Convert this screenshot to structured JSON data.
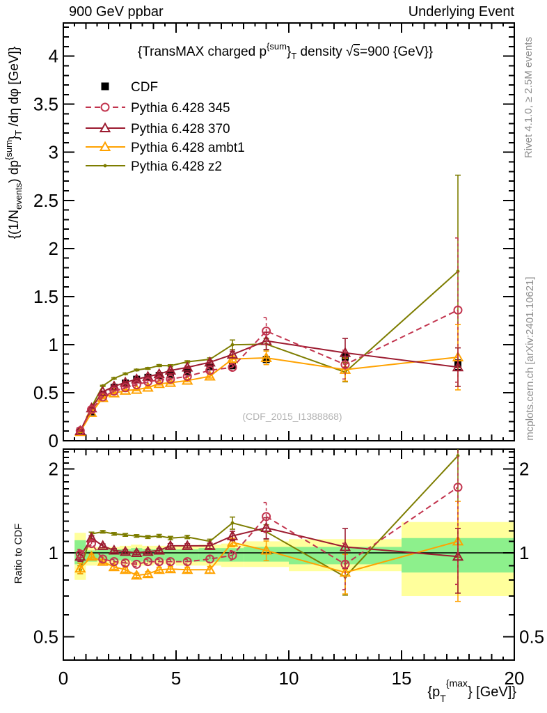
{
  "header": {
    "left": "900 GeV ppbar",
    "right": "Underlying Event"
  },
  "side_captions": {
    "top_right": "Rivet 4.1.0, ≥ 2.5M events",
    "bottom_right": "mcplots.cern.ch [arXiv:2401.10621]"
  },
  "watermark": "(CDF_2015_I1388868)",
  "chart_data": {
    "type": "line",
    "title": "{TransMAX charged p{sum}T density √s=900 {GeV}}",
    "title_parts": {
      "pre": "{TransMAX charged p",
      "sup": "{sum",
      "brace": "}",
      "sub": "T",
      "mid": " density ",
      "sqrt": "√",
      "sqrt_arg": "s",
      "post": "=900 {GeV}}"
    },
    "xlabel_parts": {
      "pre": "{p",
      "sub": "T",
      "sup": "{max",
      "post": "} [GeV]}"
    },
    "ylabel_top_parts": {
      "p1": "{(1/N",
      "s1": "events",
      "p2": ") dp",
      "s2": "{sum",
      "p3": "}",
      "s3": "T",
      "p4": " /dη dφ [GeV]}"
    },
    "ylabel_bottom": "Ratio to CDF",
    "xlim": [
      0,
      20
    ],
    "ylim_top": [
      0,
      4.345
    ],
    "ylim_ratio": [
      0.412,
      2.357
    ],
    "ratio_scale": "log",
    "x_ticks_labeled": [
      0,
      5,
      10,
      15,
      20
    ],
    "y_ticks_top": [
      0,
      0.5,
      1,
      1.5,
      2,
      2.5,
      3,
      3.5,
      4
    ],
    "y_ticks_ratio": [
      0.5,
      1,
      2
    ],
    "bin_edges": [
      0.5,
      1,
      1.5,
      2,
      2.5,
      3,
      3.5,
      4,
      4.5,
      5,
      6,
      7,
      8,
      10,
      15,
      20
    ],
    "x": [
      0.75,
      1.25,
      1.75,
      2.25,
      2.75,
      3.25,
      3.75,
      4.25,
      4.75,
      5.5,
      6.5,
      7.5,
      9,
      12.5,
      17.5
    ],
    "cdf": {
      "label": "CDF",
      "marker": "square",
      "color": "#000000",
      "y": [
        0.105,
        0.3,
        0.48,
        0.555,
        0.6,
        0.64,
        0.66,
        0.68,
        0.69,
        0.72,
        0.77,
        0.78,
        0.845,
        0.87,
        0.79
      ],
      "yerr": [
        0.008,
        0.01,
        0.012,
        0.012,
        0.014,
        0.014,
        0.015,
        0.016,
        0.016,
        0.018,
        0.02,
        0.025,
        0.03,
        0.04,
        0.05
      ]
    },
    "series": [
      {
        "label": "Pythia 6.428 z2",
        "color": "#7d7d00",
        "line": "solid",
        "marker": "dot",
        "y": [
          0.091,
          0.351,
          0.571,
          0.649,
          0.696,
          0.736,
          0.752,
          0.782,
          0.78,
          0.821,
          0.847,
          0.998,
          1.005,
          0.713,
          1.762
        ],
        "ratio": [
          0.87,
          1.17,
          1.19,
          1.17,
          1.16,
          1.15,
          1.14,
          1.15,
          1.13,
          1.14,
          1.1,
          1.28,
          1.19,
          0.82,
          2.23
        ],
        "yerr": [
          0.003,
          0.005,
          0.006,
          0.007,
          0.008,
          0.008,
          0.009,
          0.01,
          0.011,
          0.011,
          0.015,
          0.05,
          0.06,
          0.1,
          1.0
        ]
      },
      {
        "label": "Pythia 6.428 ambt1",
        "color": "#ffa200",
        "line": "solid",
        "marker": "triangle-open",
        "y": [
          0.092,
          0.291,
          0.446,
          0.494,
          0.522,
          0.531,
          0.554,
          0.592,
          0.604,
          0.626,
          0.67,
          0.85,
          0.862,
          0.74,
          0.869
        ],
        "ratio": [
          0.88,
          0.97,
          0.93,
          0.89,
          0.87,
          0.83,
          0.84,
          0.87,
          0.875,
          0.87,
          0.87,
          1.09,
          1.02,
          0.85,
          1.1
        ],
        "yerr": [
          0.004,
          0.006,
          0.008,
          0.009,
          0.01,
          0.01,
          0.011,
          0.012,
          0.013,
          0.013,
          0.018,
          0.03,
          0.07,
          0.12,
          0.34
        ]
      },
      {
        "label": "Pythia 6.428 370",
        "color": "#9c1b30",
        "line": "solid",
        "marker": "triangle-open",
        "y": [
          0.102,
          0.339,
          0.509,
          0.566,
          0.606,
          0.64,
          0.667,
          0.694,
          0.731,
          0.763,
          0.816,
          0.897,
          1.039,
          0.914,
          0.766
        ],
        "ratio": [
          0.97,
          1.13,
          1.06,
          1.02,
          1.01,
          1.0,
          1.01,
          1.02,
          1.06,
          1.06,
          1.06,
          1.15,
          1.23,
          1.05,
          0.97
        ],
        "yerr": [
          0.004,
          0.006,
          0.008,
          0.009,
          0.01,
          0.01,
          0.011,
          0.012,
          0.013,
          0.013,
          0.018,
          0.035,
          0.09,
          0.15,
          0.2
        ]
      },
      {
        "label": "Pythia 6.428 345",
        "color": "#c2344e",
        "line": "dashed",
        "marker": "circle-open",
        "y": [
          0.104,
          0.324,
          0.456,
          0.516,
          0.552,
          0.582,
          0.614,
          0.632,
          0.642,
          0.67,
          0.732,
          0.764,
          1.141,
          0.792,
          1.359
        ],
        "ratio": [
          0.99,
          1.08,
          0.95,
          0.93,
          0.92,
          0.91,
          0.93,
          0.93,
          0.93,
          0.93,
          0.95,
          0.98,
          1.35,
          0.91,
          1.72
        ],
        "yerr": [
          0.004,
          0.006,
          0.008,
          0.009,
          0.01,
          0.01,
          0.011,
          0.012,
          0.013,
          0.013,
          0.018,
          0.03,
          0.14,
          0.15,
          0.75
        ]
      }
    ],
    "legend_order": [
      "CDF",
      "Pythia 6.428 345",
      "Pythia 6.428 370",
      "Pythia 6.428 ambt1",
      "Pythia 6.428 z2"
    ],
    "bands": {
      "yellow_color": "#ffff9c",
      "green_color": "#8df08c",
      "per_bin": [
        {
          "x0": 0.5,
          "x1": 1,
          "yellow": [
            0.8,
            1.18
          ],
          "green": [
            0.91,
            1.11
          ]
        },
        {
          "x0": 1,
          "x1": 1.5,
          "yellow": [
            0.9,
            1.05
          ],
          "green": [
            0.93,
            1.02
          ]
        },
        {
          "x0": 1.5,
          "x1": 2,
          "yellow": [
            0.91,
            1.05
          ],
          "green": [
            0.94,
            1.03
          ]
        },
        {
          "x0": 2,
          "x1": 2.5,
          "yellow": [
            0.91,
            1.05
          ],
          "green": [
            0.94,
            1.03
          ]
        },
        {
          "x0": 2.5,
          "x1": 3,
          "yellow": [
            0.91,
            1.06
          ],
          "green": [
            0.94,
            1.03
          ]
        },
        {
          "x0": 3,
          "x1": 3.5,
          "yellow": [
            0.9,
            1.07
          ],
          "green": [
            0.93,
            1.04
          ]
        },
        {
          "x0": 3.5,
          "x1": 4,
          "yellow": [
            0.9,
            1.06
          ],
          "green": [
            0.93,
            1.03
          ]
        },
        {
          "x0": 4,
          "x1": 4.5,
          "yellow": [
            0.91,
            1.06
          ],
          "green": [
            0.94,
            1.03
          ]
        },
        {
          "x0": 4.5,
          "x1": 5,
          "yellow": [
            0.91,
            1.06
          ],
          "green": [
            0.94,
            1.03
          ]
        },
        {
          "x0": 5,
          "x1": 6,
          "yellow": [
            0.9,
            1.06
          ],
          "green": [
            0.93,
            1.03
          ]
        },
        {
          "x0": 6,
          "x1": 7,
          "yellow": [
            0.9,
            1.07
          ],
          "green": [
            0.93,
            1.04
          ]
        },
        {
          "x0": 7,
          "x1": 8,
          "yellow": [
            0.89,
            1.08
          ],
          "green": [
            0.93,
            1.04
          ]
        },
        {
          "x0": 8,
          "x1": 10,
          "yellow": [
            0.89,
            1.1
          ],
          "green": [
            0.93,
            1.05
          ]
        },
        {
          "x0": 10,
          "x1": 15,
          "yellow": [
            0.86,
            1.12
          ],
          "green": [
            0.91,
            1.05
          ]
        },
        {
          "x0": 15,
          "x1": 20,
          "yellow": [
            0.7,
            1.29
          ],
          "green": [
            0.85,
            1.13
          ]
        }
      ]
    }
  }
}
